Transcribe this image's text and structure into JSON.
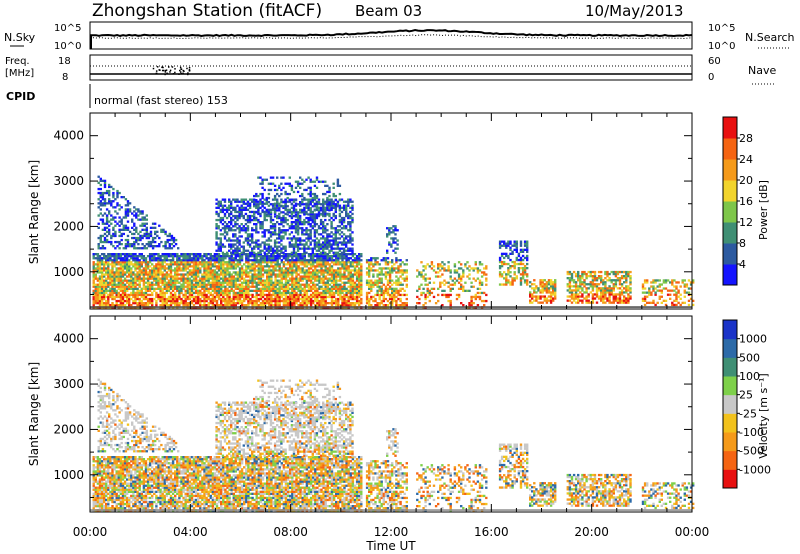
{
  "header": {
    "station": "Zhongshan Station (fitACF)",
    "beam": "Beam 03",
    "date": "10/May/2013"
  },
  "noise_panel": {
    "left_label": "N.Sky",
    "right_label": "N.Search",
    "left_ticks": [
      "10^5",
      "10^0"
    ],
    "right_ticks": [
      "10^5",
      "10^0"
    ]
  },
  "freq_panel": {
    "left_label_1": "Freq.",
    "left_label_2": "[MHz]",
    "right_label": "Nave",
    "left_ticks": [
      "18",
      "8"
    ],
    "right_ticks": [
      "60",
      "0"
    ]
  },
  "cpid": {
    "label": "CPID",
    "mode": "normal (fast stereo) 153"
  },
  "time_axis": {
    "label": "Time UT",
    "ticks": [
      "00:00",
      "04:00",
      "08:00",
      "12:00",
      "16:00",
      "20:00",
      "00:00"
    ]
  },
  "chart_data": [
    {
      "type": "heatmap",
      "name": "power",
      "ylabel": "Slant Range [km]",
      "yticks": [
        "1000",
        "2000",
        "3000",
        "4000"
      ],
      "ylim": [
        180,
        4500
      ],
      "xlim": [
        0,
        24
      ],
      "colorbar": {
        "label": "Power [dB]",
        "ticks": [
          "4",
          "8",
          "12",
          "16",
          "20",
          "24",
          "28"
        ],
        "range": [
          0,
          30
        ],
        "colors": [
          "#1414ff",
          "#2c5aa0",
          "#3f8f74",
          "#7ec64a",
          "#f2d42c",
          "#f59a1a",
          "#f56412",
          "#e81010"
        ]
      }
    },
    {
      "type": "heatmap",
      "name": "velocity",
      "ylabel": "Slant Range [km]",
      "yticks": [
        "1000",
        "2000",
        "3000",
        "4000"
      ],
      "ylim": [
        180,
        4500
      ],
      "xlim": [
        0,
        24
      ],
      "colorbar": {
        "label": "Velocity [m s⁻¹]",
        "ticks": [
          "1000",
          "500",
          "100",
          "25",
          "-25",
          "-100",
          "-500",
          "-1000"
        ],
        "colors": [
          "#1a33c8",
          "#2c6aa8",
          "#3f8f74",
          "#7ed04a",
          "#c8c8c8",
          "#f2c21c",
          "#f59a1a",
          "#f56412",
          "#e81010"
        ]
      }
    }
  ]
}
